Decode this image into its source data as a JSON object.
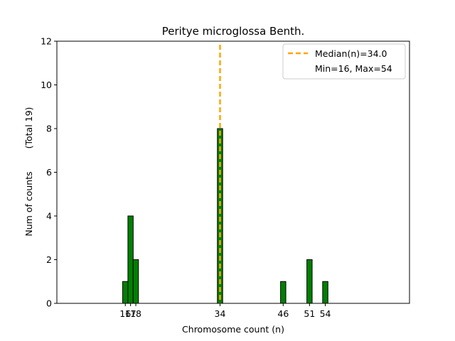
{
  "chart_data": {
    "type": "bar",
    "title": "Peritye microglossa Benth.",
    "xlabel": "Chromosome count (n)",
    "ylabel": "Num of counts",
    "ylabel_total": "(Total 19)",
    "xlim": [
      3,
      70
    ],
    "ylim": [
      0,
      12
    ],
    "yticks": [
      0,
      2,
      4,
      6,
      8,
      10,
      12
    ],
    "xticks": [
      16,
      17,
      18,
      34,
      46,
      51,
      54
    ],
    "bar_width": 1,
    "bar_color": "#008000",
    "bar_edge_color": "#000000",
    "bars": [
      {
        "x": 16,
        "value": 1
      },
      {
        "x": 17,
        "value": 4
      },
      {
        "x": 18,
        "value": 2
      },
      {
        "x": 34,
        "value": 8
      },
      {
        "x": 46,
        "value": 1
      },
      {
        "x": 51,
        "value": 2
      },
      {
        "x": 54,
        "value": 1
      }
    ],
    "median": 34.0,
    "median_color": "#FFA500",
    "legend": {
      "position": "upper right",
      "entries": [
        "Median(n)=34.0",
        "Min=16, Max=54"
      ]
    },
    "grid": false
  }
}
